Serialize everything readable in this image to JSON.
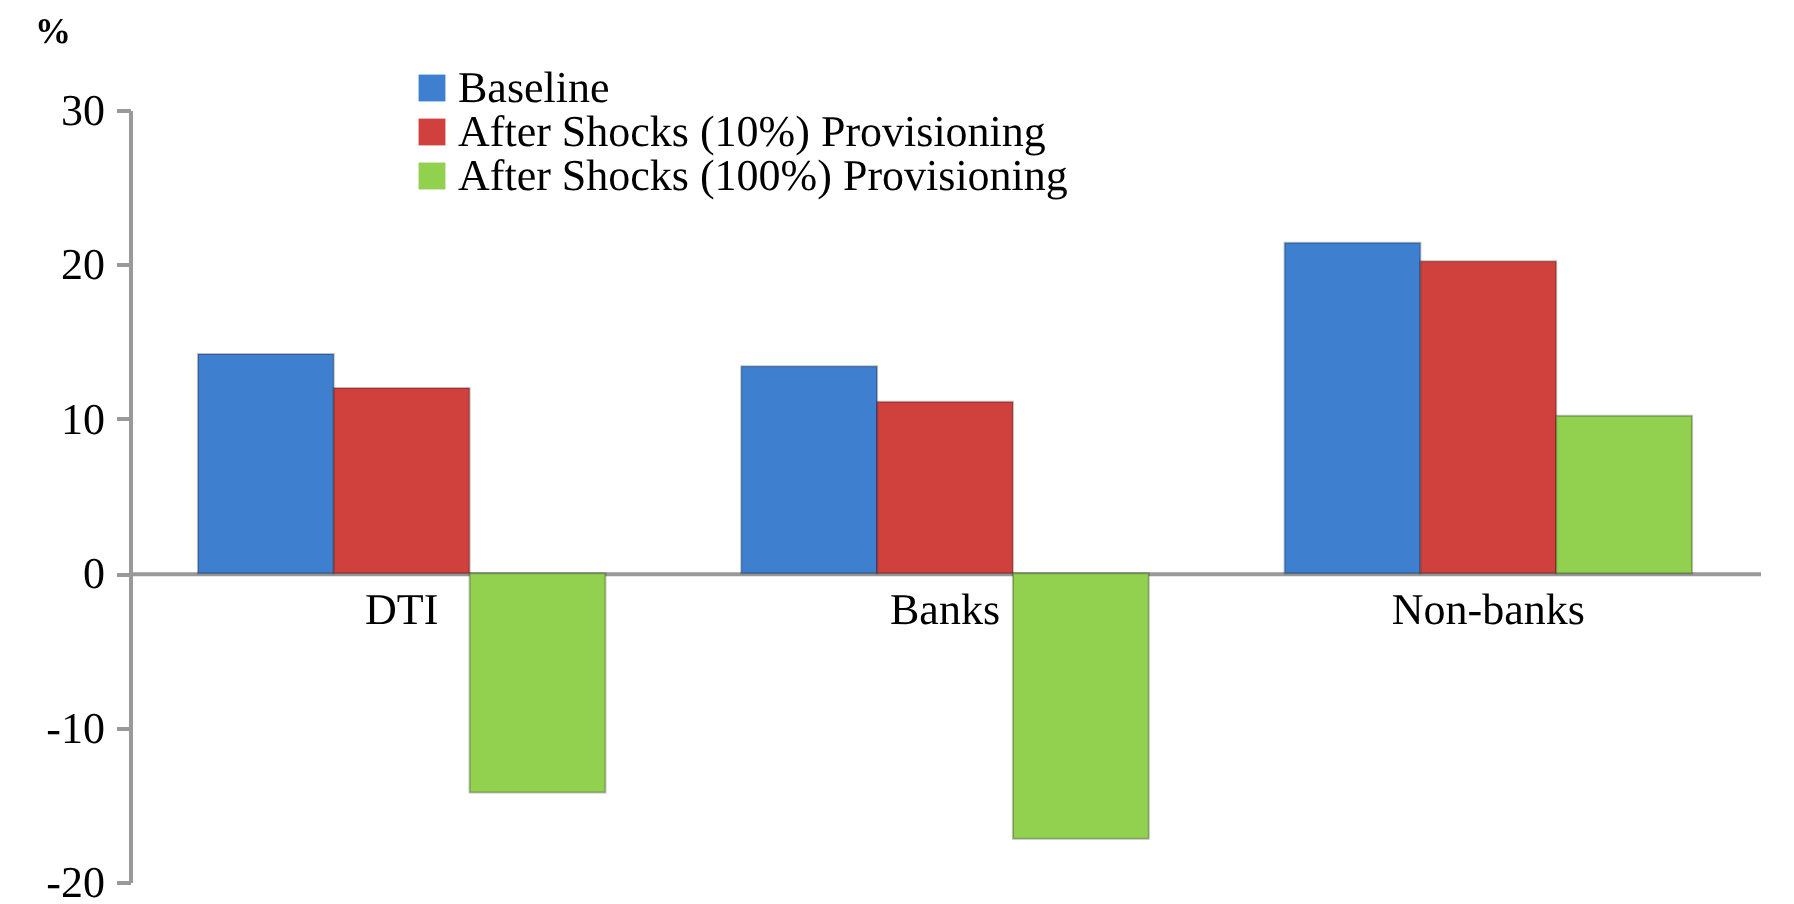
{
  "chart_data": {
    "type": "bar",
    "ylabel": "%",
    "categories": [
      "DTI",
      "Banks",
      "Non-banks"
    ],
    "series": [
      {
        "name": "Baseline",
        "color": "#3f7fcf",
        "values": [
          14.2,
          13.4,
          21.4
        ]
      },
      {
        "name": "After Shocks (10%) Provisioning",
        "color": "#d0403c",
        "values": [
          12.0,
          11.1,
          20.2
        ]
      },
      {
        "name": "After Shocks (100%) Provisioning",
        "color": "#92d050",
        "values": [
          -14.2,
          -17.2,
          10.2
        ]
      }
    ],
    "ylim": [
      -20,
      30
    ],
    "yticks": [
      -20,
      -10,
      0,
      10,
      20,
      30
    ],
    "grid": false,
    "legend": "top left"
  }
}
